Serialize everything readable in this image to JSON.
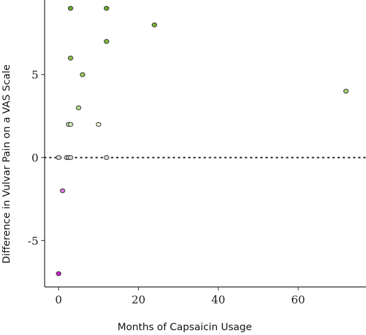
{
  "chart_data": {
    "type": "scatter",
    "title": "",
    "xlabel": "Months of Capsaicin Usage",
    "ylabel": "Difference  in Vulvar Pain on a VAS Scale",
    "xlim": [
      -3.5,
      77
    ],
    "ylim": [
      -7.8,
      9.5
    ],
    "xticks": [
      0,
      20,
      40,
      60
    ],
    "xtick_labels": [
      "0",
      "20",
      "40",
      "60"
    ],
    "yticks": [
      -5,
      0,
      5
    ],
    "ytick_labels": [
      "-5",
      "0",
      "5"
    ],
    "grid": false,
    "legend": "none",
    "reference_line": {
      "y": 0,
      "style": "dotted"
    },
    "color_scale": {
      "low": "#cc33cc",
      "mid": "#ffffff",
      "high": "#339900"
    },
    "points": [
      {
        "x": 3,
        "y": 9,
        "color": "#6aaa2a"
      },
      {
        "x": 12,
        "y": 9,
        "color": "#6aaa2a"
      },
      {
        "x": 24,
        "y": 8,
        "color": "#77b334"
      },
      {
        "x": 12,
        "y": 7,
        "color": "#7fba3c"
      },
      {
        "x": 3,
        "y": 6,
        "color": "#88c046"
      },
      {
        "x": 6,
        "y": 5,
        "color": "#97c95a"
      },
      {
        "x": 72,
        "y": 4,
        "color": "#a3d06c"
      },
      {
        "x": 5,
        "y": 3,
        "color": "#b5da88"
      },
      {
        "x": 2.5,
        "y": 2,
        "color": "#d4e9bb"
      },
      {
        "x": 3,
        "y": 2,
        "color": "#d4e9bb"
      },
      {
        "x": 10,
        "y": 2,
        "color": "#e2f0d0"
      },
      {
        "x": 0,
        "y": 0,
        "color": "#d9d9d9"
      },
      {
        "x": 2,
        "y": 0,
        "color": "#d9d9d9"
      },
      {
        "x": 2.5,
        "y": 0,
        "color": "#d9d9d9"
      },
      {
        "x": 3,
        "y": 0,
        "color": "#d9d9d9"
      },
      {
        "x": 12,
        "y": 0,
        "color": "#d9d9d9"
      },
      {
        "x": 1,
        "y": -2,
        "color": "#dd77dd"
      },
      {
        "x": 0,
        "y": -7,
        "color": "#cc22cc"
      }
    ]
  }
}
